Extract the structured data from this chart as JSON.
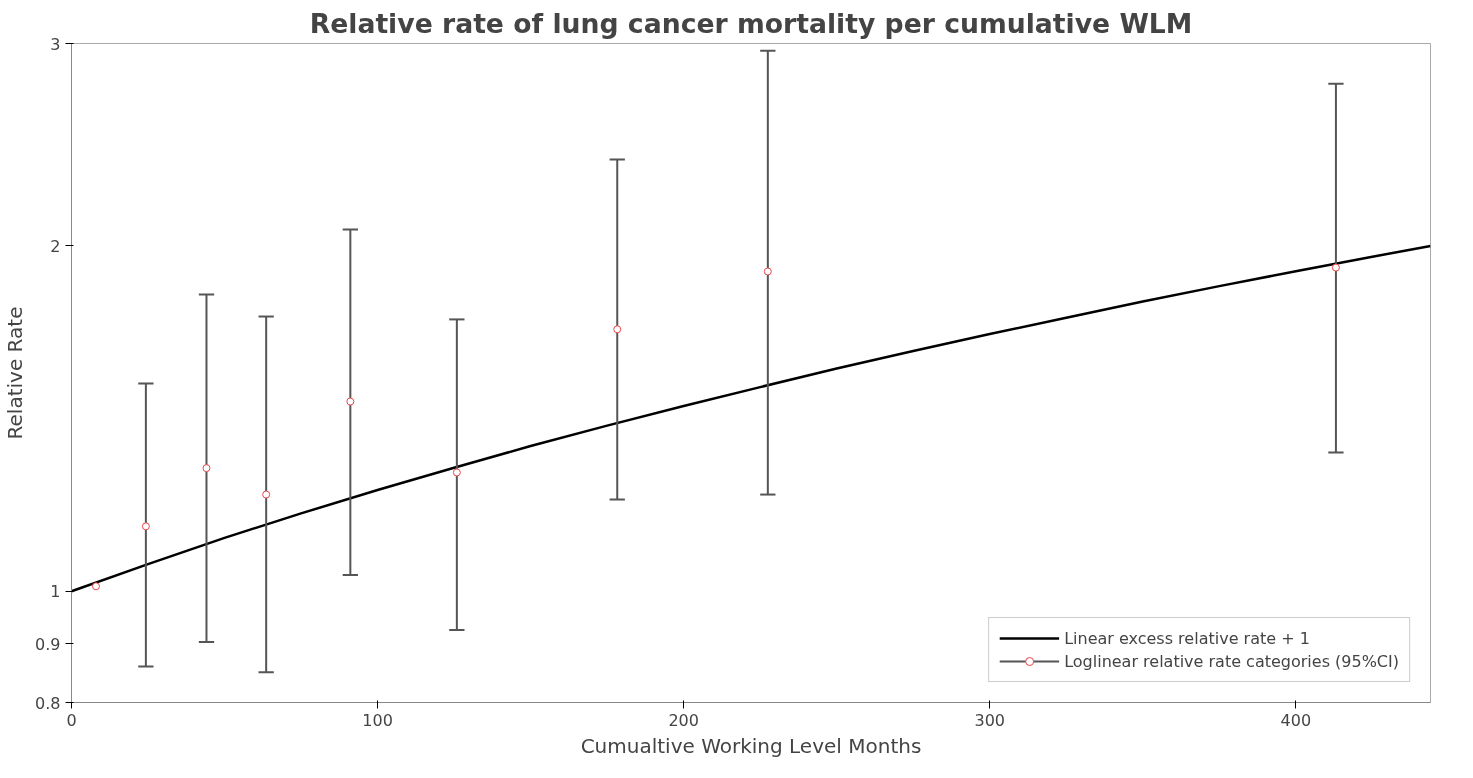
{
  "chart_data": {
    "type": "scatter",
    "title": "Relative rate of lung cancer mortality per cumulative WLM",
    "xlabel": "Cumualtive Working Level Months",
    "ylabel": "Relative Rate",
    "log": "y",
    "xlim": [
      0,
      444
    ],
    "ylim": [
      0.8,
      3
    ],
    "xticks": [
      0,
      100,
      200,
      300,
      400
    ],
    "yticks": [
      0.8,
      0.9,
      1,
      2,
      3
    ],
    "grid": false,
    "legend": "bottom right",
    "series": [
      {
        "name": "Linear excess relative rate + 1",
        "type": "line",
        "color": "#000000",
        "line_style": "solid",
        "x": [
          0,
          25,
          50,
          75,
          100,
          125,
          150,
          175,
          200,
          225,
          250,
          275,
          300,
          325,
          350,
          375,
          400,
          425,
          444
        ],
        "values": [
          1,
          1.056,
          1.113,
          1.169,
          1.225,
          1.281,
          1.338,
          1.394,
          1.45,
          1.506,
          1.563,
          1.619,
          1.675,
          1.731,
          1.788,
          1.844,
          1.9,
          1.956,
          1.999
        ]
      },
      {
        "name": "Loglinear relative rate categories (95%CI)",
        "color": "#e8474c",
        "marker": "circle",
        "x": [
          8,
          24.3,
          44.1,
          63.6,
          91.1,
          125.9,
          178.3,
          227.5,
          413.1
        ],
        "values": [
          1.01,
          1.139,
          1.28,
          1.214,
          1.463,
          1.269,
          1.691,
          1.899,
          1.914
        ],
        "errors": [
          null,
          [
            0.86,
            1.517
          ],
          [
            0.903,
            1.813
          ],
          [
            0.85,
            1.735
          ],
          [
            1.033,
            2.066
          ],
          [
            0.925,
            1.725
          ],
          [
            1.202,
            2.377
          ],
          [
            1.214,
            2.957
          ],
          [
            1.321,
            2.768
          ]
        ]
      }
    ]
  }
}
